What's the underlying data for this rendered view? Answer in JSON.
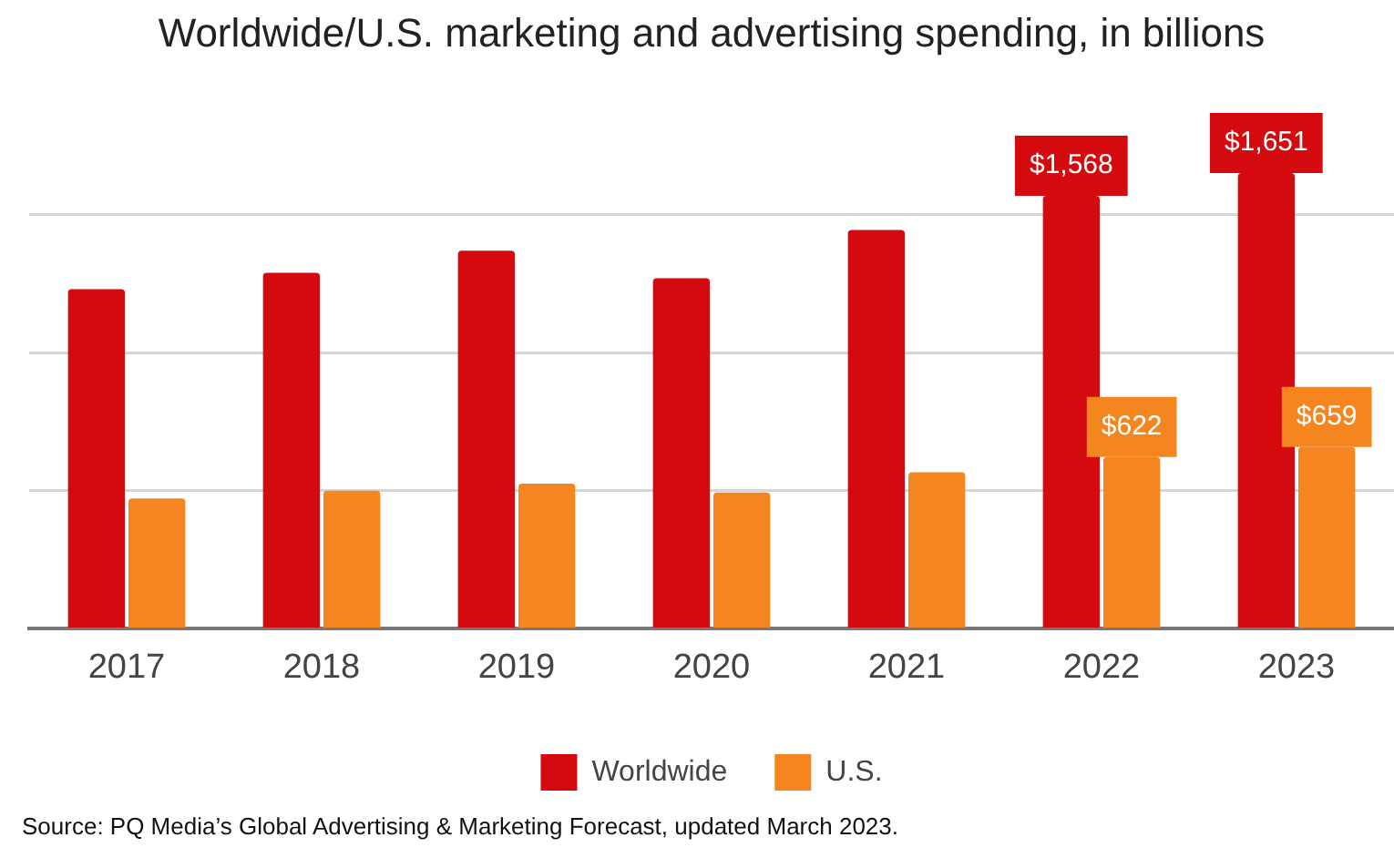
{
  "chart_data": {
    "type": "bar",
    "title": "Worldwide/U.S. marketing and advertising spending, in billions",
    "categories": [
      "2017",
      "2018",
      "2019",
      "2020",
      "2021",
      "2022",
      "2023"
    ],
    "series": [
      {
        "name": "Worldwide",
        "color": "#d40a0f",
        "values": [
          1230,
          1290,
          1370,
          1270,
          1445,
          1568,
          1651
        ],
        "value_labels": [
          null,
          null,
          null,
          null,
          null,
          "$1,568",
          "$1,651"
        ]
      },
      {
        "name": "U.S.",
        "color": "#f5861f",
        "values": [
          472,
          500,
          526,
          494,
          567,
          622,
          659
        ],
        "value_labels": [
          null,
          null,
          null,
          null,
          null,
          "$622",
          "$659"
        ]
      }
    ],
    "yticks": [
      {
        "value": 0,
        "label": null
      },
      {
        "value": 500,
        "label": null
      },
      {
        "value": 1000,
        "label": null
      },
      {
        "value": 1500,
        "label": null
      }
    ],
    "tick_labels": "x",
    "grid": "y",
    "legend": "bottom",
    "annotations": [
      "Source: PQ Media’s Global Advertising & Marketing Forecast, updated March 2023."
    ]
  }
}
